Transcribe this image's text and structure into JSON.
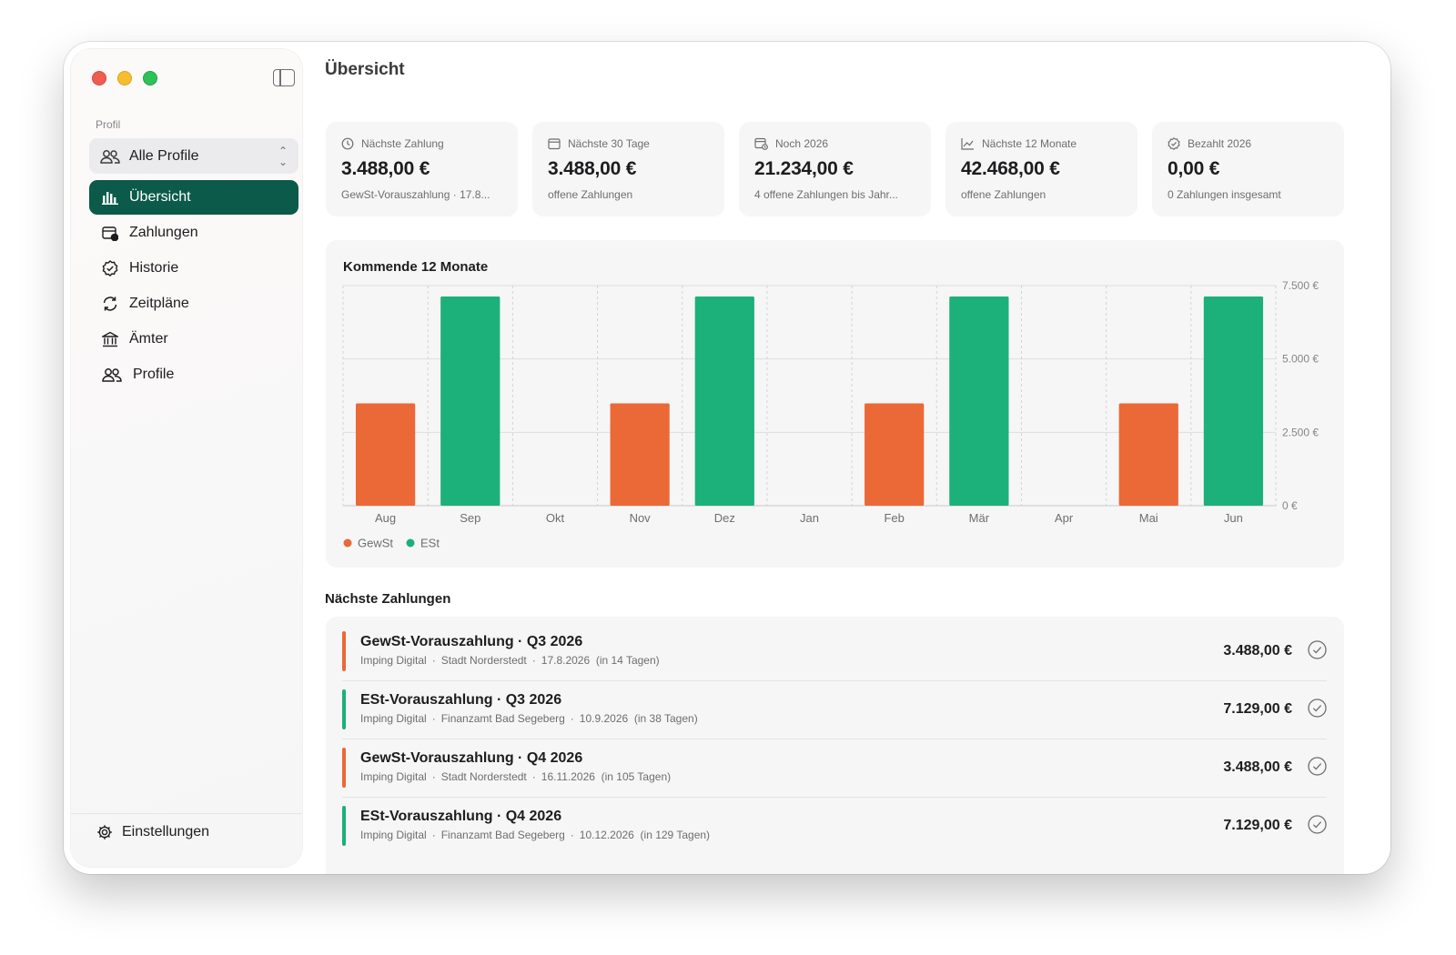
{
  "sidebar": {
    "profile_caption": "Profil",
    "profile_select": {
      "value": "Alle Profile",
      "icon": "people-icon"
    },
    "items": [
      {
        "label": "Übersicht",
        "icon": "chart-bar-icon",
        "active": true
      },
      {
        "label": "Zahlungen",
        "icon": "calendar-clock-icon",
        "active": false
      },
      {
        "label": "Historie",
        "icon": "check-badge-icon",
        "active": false
      },
      {
        "label": "Zeitpläne",
        "icon": "refresh-icon",
        "active": false
      },
      {
        "label": "Ämter",
        "icon": "bank-icon",
        "active": false
      },
      {
        "label": "Profile",
        "icon": "people-icon",
        "active": false
      }
    ],
    "settings_label": "Einstellungen"
  },
  "header": {
    "title": "Übersicht"
  },
  "cards": [
    {
      "label": "Nächste Zahlung",
      "icon": "clock-icon",
      "value": "3.488,00 €",
      "sub": "GewSt-Vorauszahlung · 17.8..."
    },
    {
      "label": "Nächste 30 Tage",
      "icon": "calendar-icon",
      "value": "3.488,00 €",
      "sub": "offene Zahlungen"
    },
    {
      "label": "Noch 2026",
      "icon": "calendar-clock-icon",
      "value": "21.234,00 €",
      "sub": "4 offene Zahlungen bis Jahr..."
    },
    {
      "label": "Nächste 12 Monate",
      "icon": "trend-chart-icon",
      "value": "42.468,00 €",
      "sub": "offene Zahlungen"
    },
    {
      "label": "Bezahlt 2026",
      "icon": "check-badge-icon",
      "value": "0,00 €",
      "sub": "0 Zahlungen insgesamt"
    }
  ],
  "chart": {
    "title": "Kommende 12 Monate"
  },
  "chart_data": {
    "type": "bar",
    "title": "Kommende 12 Monate",
    "categories": [
      "Aug",
      "Sep",
      "Okt",
      "Nov",
      "Dez",
      "Jan",
      "Feb",
      "Mär",
      "Apr",
      "Mai",
      "Jun"
    ],
    "series": [
      {
        "name": "GewSt",
        "color": "#eb6837",
        "values": [
          3488,
          0,
          0,
          3488,
          0,
          0,
          3488,
          0,
          0,
          3488,
          0
        ]
      },
      {
        "name": "ESt",
        "color": "#1cb07a",
        "values": [
          0,
          7129,
          0,
          0,
          7129,
          0,
          0,
          7129,
          0,
          0,
          7129
        ]
      }
    ],
    "yticks": [
      "0 €",
      "2.500 €",
      "5.000 €",
      "7.500 €"
    ],
    "ylim": [
      0,
      7500
    ],
    "yaxis_position": "right",
    "grid": true,
    "legend_position": "bottom-left"
  },
  "upcoming": {
    "title": "Nächste Zahlungen",
    "rows": [
      {
        "title": "GewSt-Vorauszahlung · Q3 2026",
        "profile": "Imping Digital",
        "office": "Stadt Norderstedt",
        "date": "17.8.2026",
        "due": "(in 14 Tagen)",
        "amount": "3.488,00 €",
        "color": "#eb6837"
      },
      {
        "title": "ESt-Vorauszahlung · Q3 2026",
        "profile": "Imping Digital",
        "office": "Finanzamt Bad Segeberg",
        "date": "10.9.2026",
        "due": "(in 38 Tagen)",
        "amount": "7.129,00 €",
        "color": "#1cb07a"
      },
      {
        "title": "GewSt-Vorauszahlung · Q4 2026",
        "profile": "Imping Digital",
        "office": "Stadt Norderstedt",
        "date": "16.11.2026",
        "due": "(in 105 Tagen)",
        "amount": "3.488,00 €",
        "color": "#eb6837"
      },
      {
        "title": "ESt-Vorauszahlung · Q4 2026",
        "profile": "Imping Digital",
        "office": "Finanzamt Bad Segeberg",
        "date": "10.12.2026",
        "due": "(in 129 Tagen)",
        "amount": "7.129,00 €",
        "color": "#1cb07a"
      }
    ]
  }
}
